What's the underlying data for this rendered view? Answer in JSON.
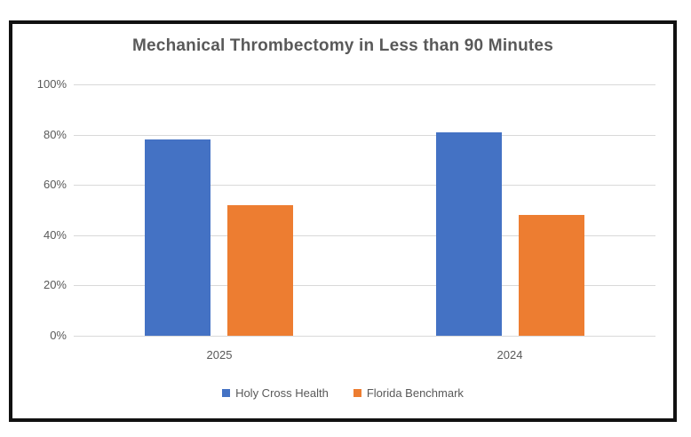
{
  "chart_data": {
    "type": "bar",
    "title": "Mechanical Thrombectomy in Less than 90 Minutes",
    "categories": [
      "2025",
      "2024"
    ],
    "series": [
      {
        "name": "Holy Cross Health",
        "color": "#4472C4",
        "values": [
          78,
          81
        ]
      },
      {
        "name": "Florida Benchmark",
        "color": "#ED7D31",
        "values": [
          52,
          48
        ]
      }
    ],
    "ylabel": "",
    "xlabel": "",
    "ylim": [
      0,
      100
    ],
    "y_ticks": [
      "0%",
      "20%",
      "40%",
      "60%",
      "80%",
      "100%"
    ],
    "y_tick_values": [
      0,
      20,
      40,
      60,
      80,
      100
    ],
    "grid": true,
    "legend_position": "bottom"
  },
  "colors": {
    "gridline": "#D9D9D9",
    "axis_text": "#595959",
    "title_text": "#595959",
    "frame_border": "#111111"
  }
}
